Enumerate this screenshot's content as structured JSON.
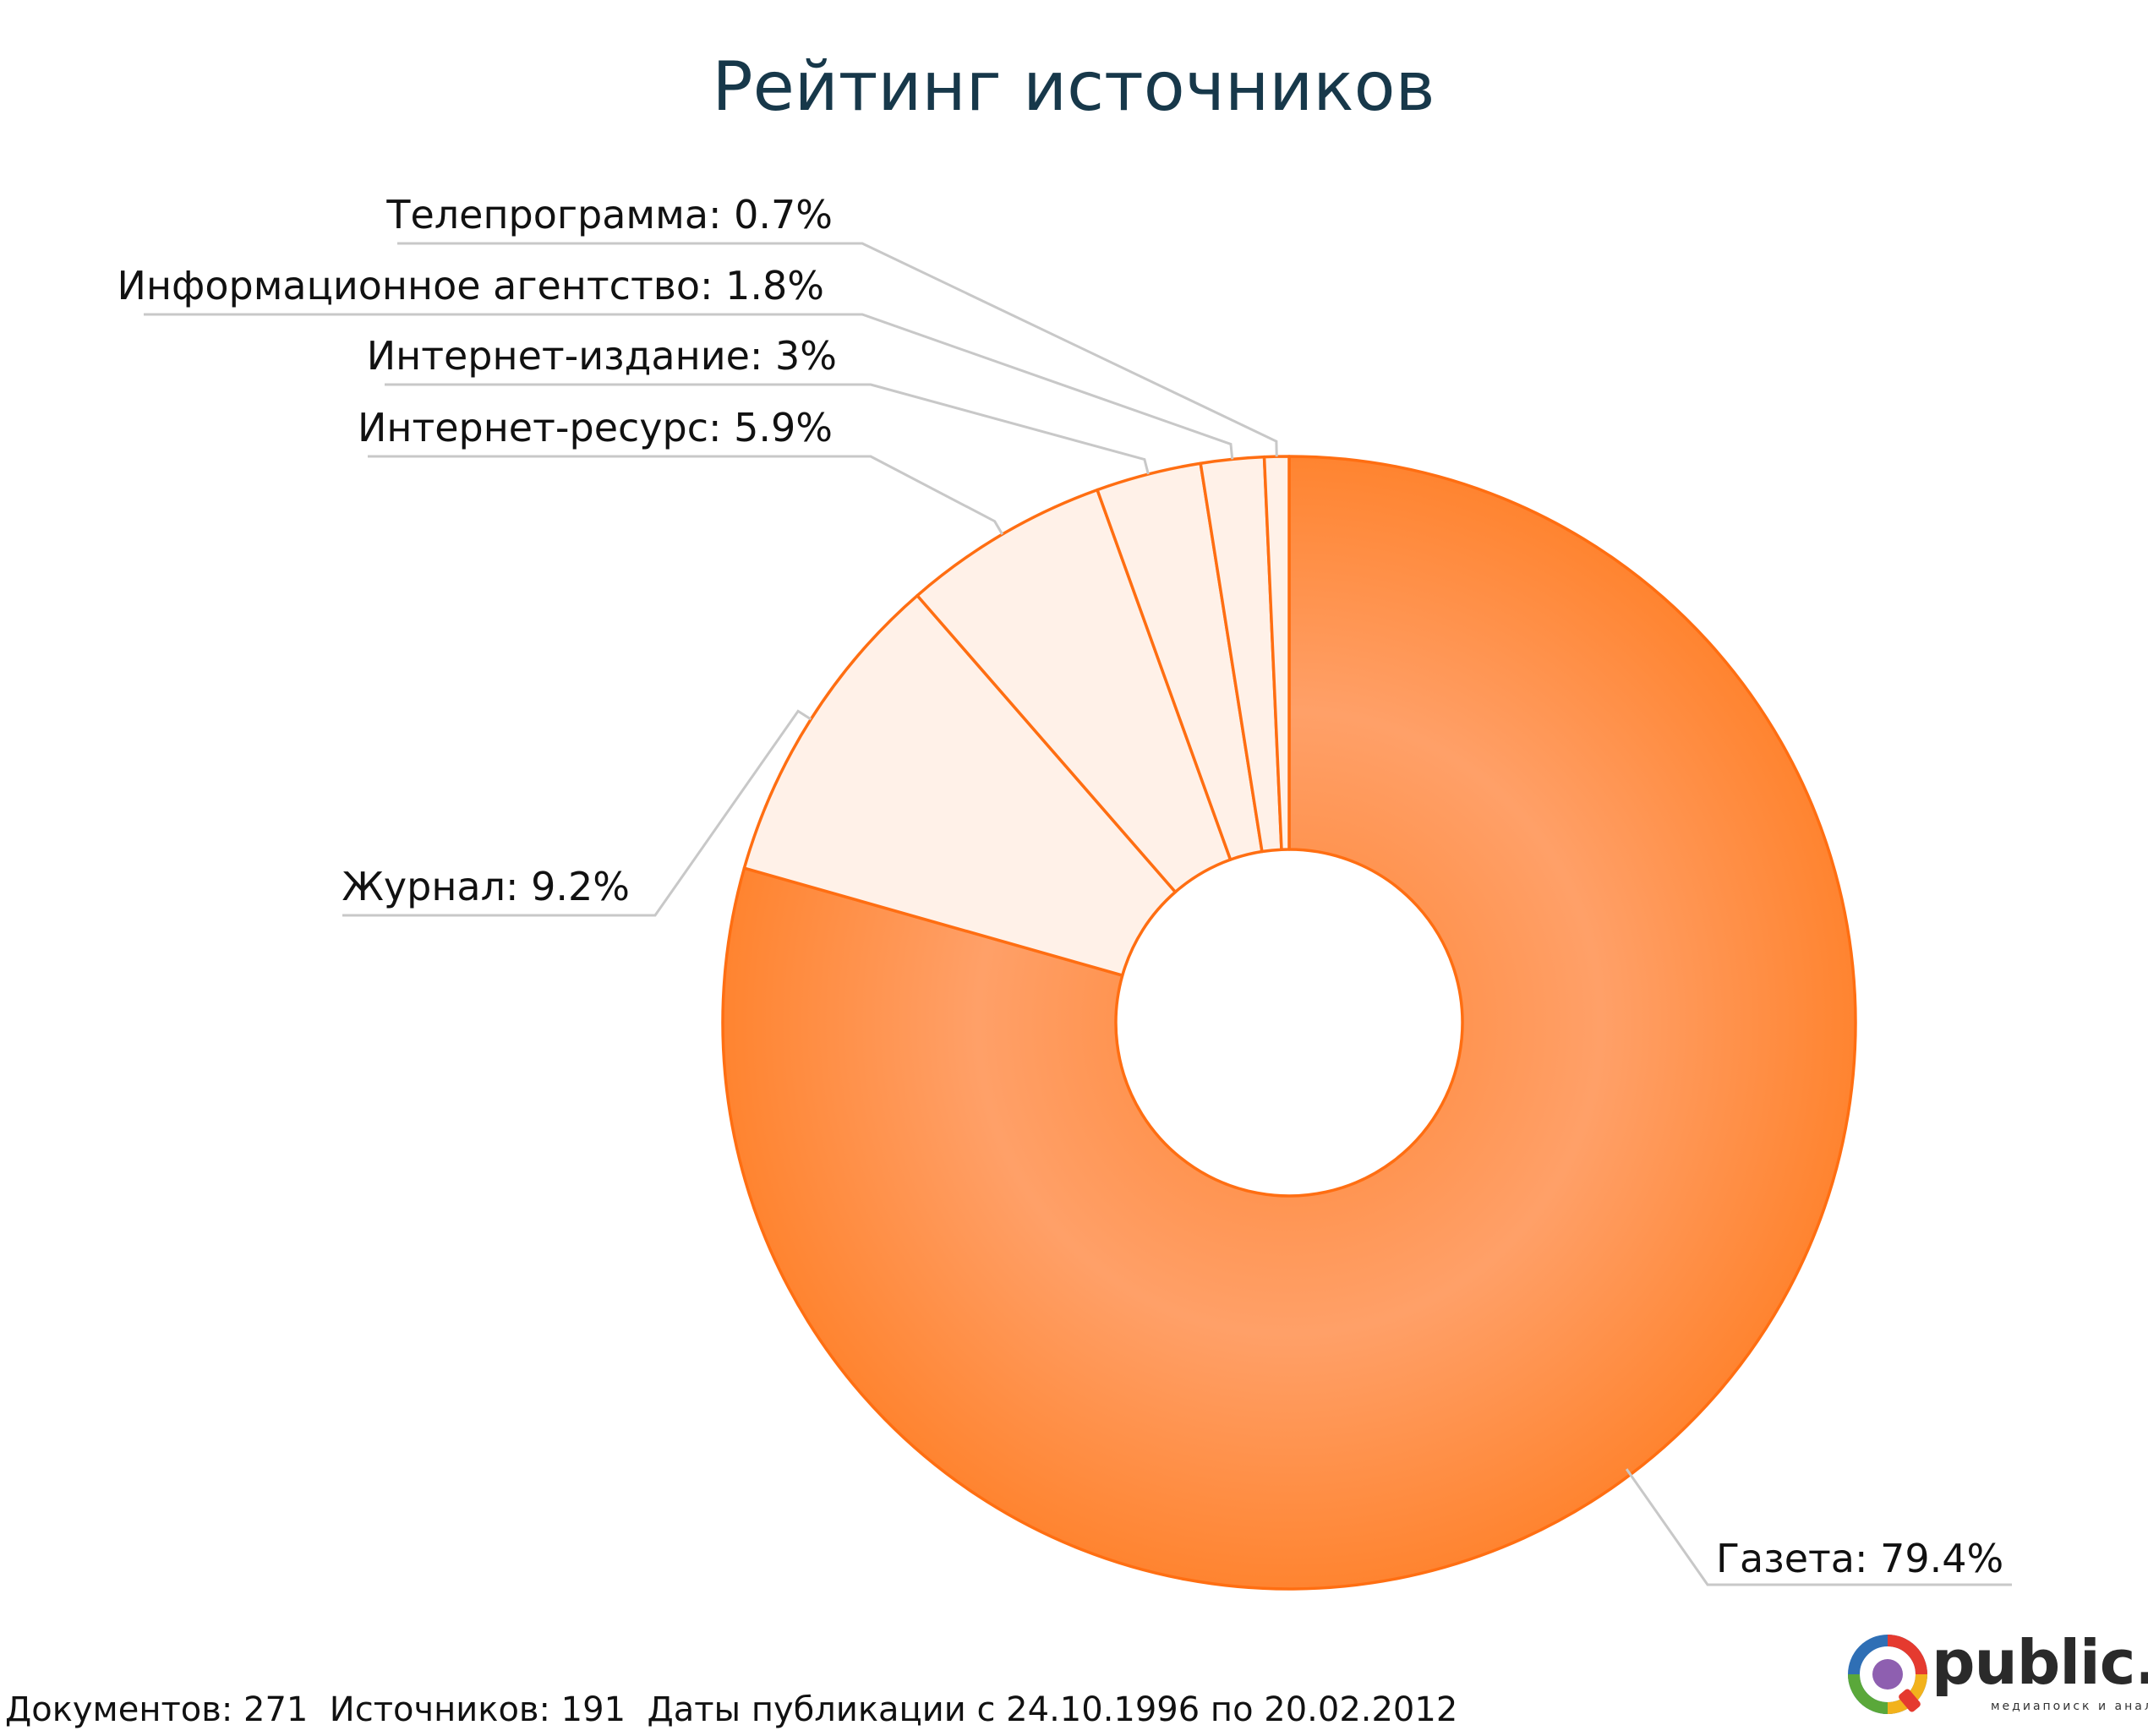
{
  "chart_data": {
    "type": "pie",
    "title": "Рейтинг источников",
    "categories": [
      "Газета",
      "Журнал",
      "Интернет-ресурс",
      "Интернет-издание",
      "Информационное агентство",
      "Телепрограмма"
    ],
    "values": [
      79.4,
      9.2,
      5.9,
      3,
      1.8,
      0.7
    ],
    "labels": [
      "Газета: 79.4%",
      "Журнал: 9.2%",
      "Интернет-ресурс: 5.9%",
      "Интернет-издание: 3%",
      "Информационное агентство: 1.8%",
      "Телепрограмма: 0.7%"
    ],
    "unit": "%",
    "legend": "none",
    "colors": {
      "main": "#ff8a3c",
      "main_light": "#ffa06a",
      "minor": "#fff1e8",
      "stroke": "#ff6e12",
      "leader": "#c8c8c8",
      "title": "#17384a"
    }
  },
  "footer": {
    "text": "Документов: 271  Источников: 191  Даты публикации с 24.10.1996 по 20.02.2012"
  },
  "logo": {
    "text": "public.ru",
    "tagline": "медиапоиск и анализ",
    "icon": "public-ru-logo-icon"
  }
}
